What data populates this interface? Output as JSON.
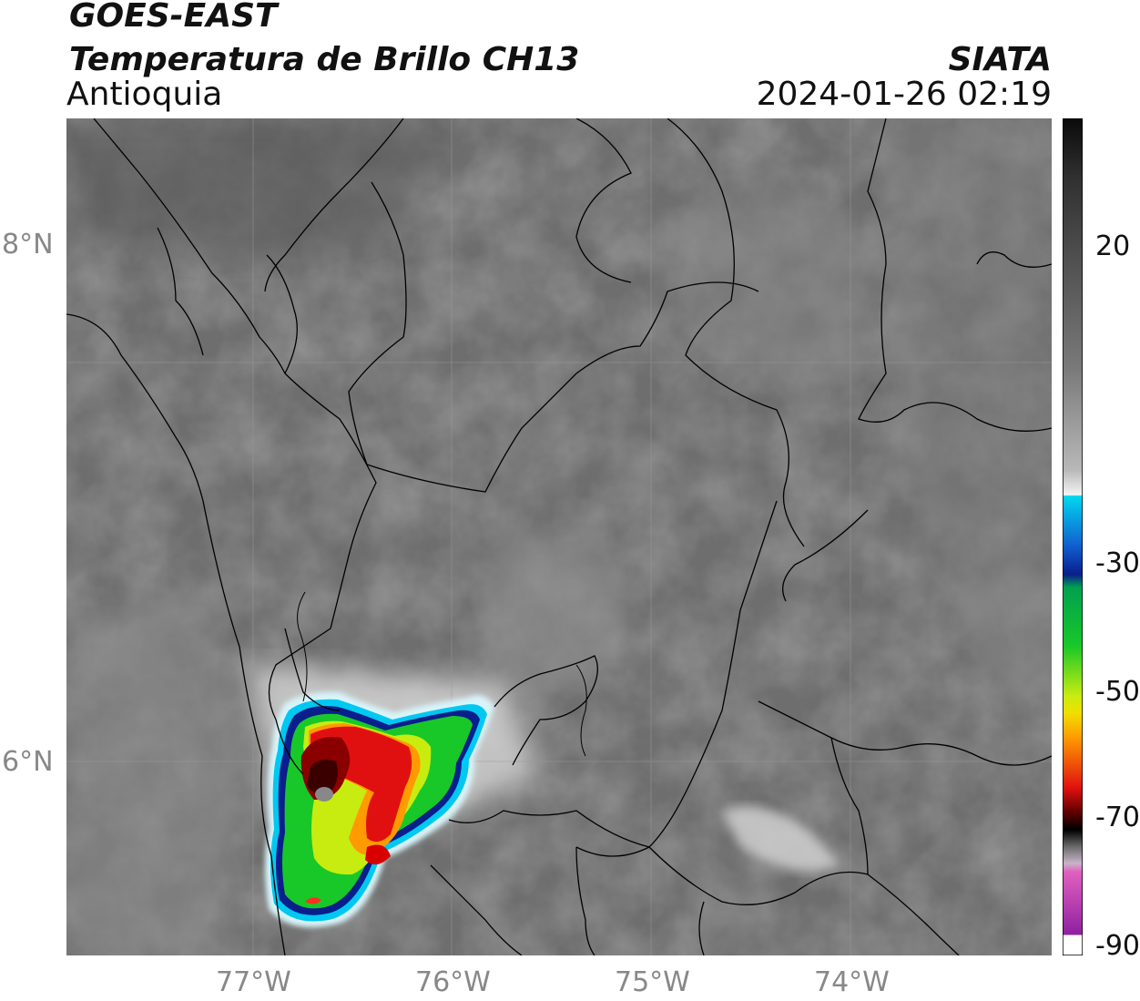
{
  "header": {
    "title_line1": "GOES-EAST",
    "title_line2": "Temperatura de Brillo CH13",
    "region": "Antioquia",
    "org": "SIATA",
    "datetime": "2024-01-26 02:19"
  },
  "map": {
    "lat_labels": [
      "8°N",
      "6°N"
    ],
    "lon_labels": [
      "77°W",
      "76°W",
      "75°W",
      "74°W"
    ],
    "grid": true,
    "features": [
      "country-borders",
      "department-borders",
      "coastline",
      "rivers"
    ]
  },
  "colorbar": {
    "tick_labels": [
      "20",
      "-30",
      "-50",
      "-70",
      "-90"
    ],
    "colors": {
      "cyan": "#00d8f0",
      "blue": "#0a1e8c",
      "green": "#18c828",
      "yellow": "#f0f000",
      "orange": "#ff9a00",
      "red": "#e01010",
      "darkred": "#5a0000",
      "magenta": "#d040c0"
    }
  },
  "storm": {
    "description_colors": [
      "#00c8f0",
      "#0a1e8c",
      "#18c828",
      "#f0f000",
      "#ff7a00",
      "#d00000",
      "#500000"
    ]
  }
}
